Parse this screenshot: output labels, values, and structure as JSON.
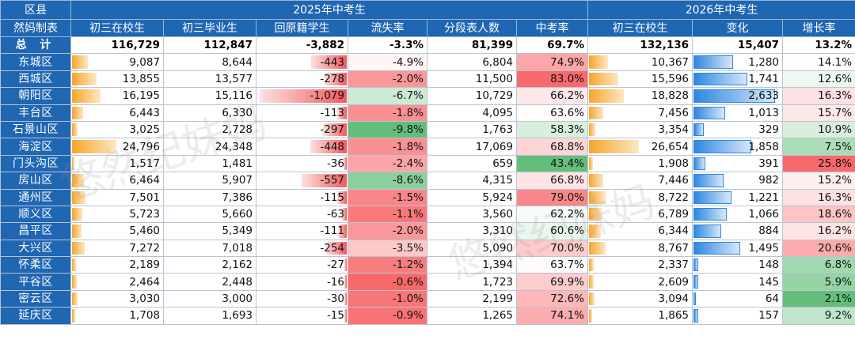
{
  "header": {
    "corner_top": "区县",
    "corner_bottom": "然妈制表",
    "group_2025": "2025年中考生",
    "group_2026": "2026年中考生",
    "cols": [
      "初三在校生",
      "初三毕业生",
      "回原籍学生",
      "流失率",
      "分段表人数",
      "中考率",
      "初三在校生",
      "变化",
      "增长率"
    ]
  },
  "colors": {
    "header_bg": "#1f66b3",
    "orange_bar": "#f7a52b",
    "red_bar": "#f1595c",
    "blue_bar": "#2e87e0",
    "green_high": "#63be7b",
    "pink_high": "#f8696b"
  },
  "watermark": "悠然纪妹妈",
  "total": {
    "label": "总 计",
    "c1": "116,729",
    "c2": "112,847",
    "c3": "-3,882",
    "c4": "-3.3%",
    "c5": "81,399",
    "c6": "69.7%",
    "c7": "132,136",
    "c8": "15,407",
    "c9": "13.2%"
  },
  "rows": [
    {
      "d": "东城区",
      "c1": "9,087",
      "c2": "8,644",
      "c3": "-443",
      "c4": "-4.9%",
      "c5": "6,804",
      "c6": "74.9%",
      "c7": "10,367",
      "c8": "1,280",
      "c9": "14.1%",
      "v1": 9087,
      "v3": 443,
      "r4": -4.9,
      "r6": 74.9,
      "v7": 10367,
      "v8": 1280,
      "r9": 14.1
    },
    {
      "d": "西城区",
      "c1": "13,855",
      "c2": "13,577",
      "c3": "-278",
      "c4": "-2.0%",
      "c5": "11,500",
      "c6": "83.0%",
      "c7": "15,596",
      "c8": "1,741",
      "c9": "12.6%",
      "v1": 13855,
      "v3": 278,
      "r4": -2.0,
      "r6": 83.0,
      "v7": 15596,
      "v8": 1741,
      "r9": 12.6
    },
    {
      "d": "朝阳区",
      "c1": "16,195",
      "c2": "15,116",
      "c3": "-1,079",
      "c4": "-6.7%",
      "c5": "10,729",
      "c6": "66.2%",
      "c7": "18,828",
      "c8": "2,633",
      "c9": "16.3%",
      "v1": 16195,
      "v3": 1079,
      "r4": -6.7,
      "r6": 66.2,
      "v7": 18828,
      "v8": 2633,
      "r9": 16.3
    },
    {
      "d": "丰台区",
      "c1": "6,443",
      "c2": "6,330",
      "c3": "-113",
      "c4": "-1.8%",
      "c5": "4,095",
      "c6": "63.6%",
      "c7": "7,456",
      "c8": "1,013",
      "c9": "15.7%",
      "v1": 6443,
      "v3": 113,
      "r4": -1.8,
      "r6": 63.6,
      "v7": 7456,
      "v8": 1013,
      "r9": 15.7
    },
    {
      "d": "石景山区",
      "c1": "3,025",
      "c2": "2,728",
      "c3": "-297",
      "c4": "-9.8%",
      "c5": "1,763",
      "c6": "58.3%",
      "c7": "3,354",
      "c8": "329",
      "c9": "10.9%",
      "v1": 3025,
      "v3": 297,
      "r4": -9.8,
      "r6": 58.3,
      "v7": 3354,
      "v8": 329,
      "r9": 10.9
    },
    {
      "d": "海淀区",
      "c1": "24,796",
      "c2": "24,348",
      "c3": "-448",
      "c4": "-1.8%",
      "c5": "17,069",
      "c6": "68.8%",
      "c7": "26,654",
      "c8": "1,858",
      "c9": "7.5%",
      "v1": 24796,
      "v3": 448,
      "r4": -1.8,
      "r6": 68.8,
      "v7": 26654,
      "v8": 1858,
      "r9": 7.5
    },
    {
      "d": "门头沟区",
      "c1": "1,517",
      "c2": "1,481",
      "c3": "-36",
      "c4": "-2.4%",
      "c5": "659",
      "c6": "43.4%",
      "c7": "1,908",
      "c8": "391",
      "c9": "25.8%",
      "v1": 1517,
      "v3": 36,
      "r4": -2.4,
      "r6": 43.4,
      "v7": 1908,
      "v8": 391,
      "r9": 25.8
    },
    {
      "d": "房山区",
      "c1": "6,464",
      "c2": "5,907",
      "c3": "-557",
      "c4": "-8.6%",
      "c5": "4,315",
      "c6": "66.8%",
      "c7": "7,446",
      "c8": "982",
      "c9": "15.2%",
      "v1": 6464,
      "v3": 557,
      "r4": -8.6,
      "r6": 66.8,
      "v7": 7446,
      "v8": 982,
      "r9": 15.2
    },
    {
      "d": "通州区",
      "c1": "7,501",
      "c2": "7,386",
      "c3": "-115",
      "c4": "-1.5%",
      "c5": "5,924",
      "c6": "79.0%",
      "c7": "8,722",
      "c8": "1,221",
      "c9": "16.3%",
      "v1": 7501,
      "v3": 115,
      "r4": -1.5,
      "r6": 79.0,
      "v7": 8722,
      "v8": 1221,
      "r9": 16.3
    },
    {
      "d": "顺义区",
      "c1": "5,723",
      "c2": "5,660",
      "c3": "-63",
      "c4": "-1.1%",
      "c5": "3,560",
      "c6": "62.2%",
      "c7": "6,789",
      "c8": "1,066",
      "c9": "18.6%",
      "v1": 5723,
      "v3": 63,
      "r4": -1.1,
      "r6": 62.2,
      "v7": 6789,
      "v8": 1066,
      "r9": 18.6
    },
    {
      "d": "昌平区",
      "c1": "5,460",
      "c2": "5,349",
      "c3": "-111",
      "c4": "-2.0%",
      "c5": "3,310",
      "c6": "60.6%",
      "c7": "6,344",
      "c8": "884",
      "c9": "16.2%",
      "v1": 5460,
      "v3": 111,
      "r4": -2.0,
      "r6": 60.6,
      "v7": 6344,
      "v8": 884,
      "r9": 16.2
    },
    {
      "d": "大兴区",
      "c1": "7,272",
      "c2": "7,018",
      "c3": "-254",
      "c4": "-3.5%",
      "c5": "5,090",
      "c6": "70.0%",
      "c7": "8,767",
      "c8": "1,495",
      "c9": "20.6%",
      "v1": 7272,
      "v3": 254,
      "r4": -3.5,
      "r6": 70.0,
      "v7": 8767,
      "v8": 1495,
      "r9": 20.6
    },
    {
      "d": "怀柔区",
      "c1": "2,189",
      "c2": "2,162",
      "c3": "-27",
      "c4": "-1.2%",
      "c5": "1,394",
      "c6": "63.7%",
      "c7": "2,337",
      "c8": "148",
      "c9": "6.8%",
      "v1": 2189,
      "v3": 27,
      "r4": -1.2,
      "r6": 63.7,
      "v7": 2337,
      "v8": 148,
      "r9": 6.8
    },
    {
      "d": "平谷区",
      "c1": "2,464",
      "c2": "2,448",
      "c3": "-16",
      "c4": "-0.6%",
      "c5": "1,723",
      "c6": "69.9%",
      "c7": "2,609",
      "c8": "145",
      "c9": "5.9%",
      "v1": 2464,
      "v3": 16,
      "r4": -0.6,
      "r6": 69.9,
      "v7": 2609,
      "v8": 145,
      "r9": 5.9
    },
    {
      "d": "密云区",
      "c1": "3,030",
      "c2": "3,000",
      "c3": "-30",
      "c4": "-1.0%",
      "c5": "2,199",
      "c6": "72.6%",
      "c7": "3,094",
      "c8": "64",
      "c9": "2.1%",
      "v1": 3030,
      "v3": 30,
      "r4": -1.0,
      "r6": 72.6,
      "v7": 3094,
      "v8": 64,
      "r9": 2.1
    },
    {
      "d": "延庆区",
      "c1": "1,708",
      "c2": "1,693",
      "c3": "-15",
      "c4": "-0.9%",
      "c5": "1,265",
      "c6": "74.1%",
      "c7": "1,865",
      "c8": "157",
      "c9": "9.2%",
      "v1": 1708,
      "v3": 15,
      "r4": -0.9,
      "r6": 74.1,
      "v7": 1865,
      "v8": 157,
      "r9": 9.2
    }
  ]
}
